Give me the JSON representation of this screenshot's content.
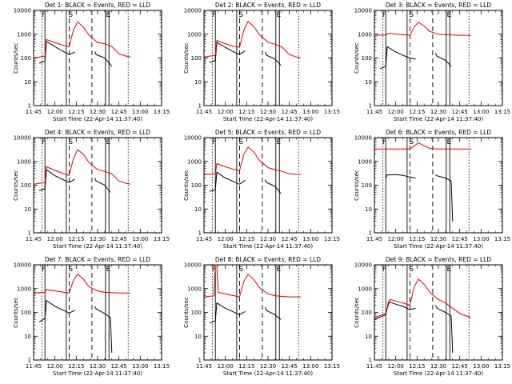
{
  "colors": {
    "events": "#000000",
    "lld": "#e00000",
    "background": "#ffffff"
  },
  "xticks": [
    "11:45",
    "12:00",
    "12:15",
    "12:30",
    "12:45",
    "13:00",
    "13:15"
  ],
  "yticks": [
    "1",
    "10",
    "100",
    "1000",
    "10000"
  ],
  "ylabel": "Counts/sec",
  "xlabel": "Start Time (22-Apr-14 11:37:40)",
  "markers": {
    "f": "F",
    "s": "S",
    "e": "E"
  },
  "chart_data": [
    {
      "type": "line",
      "title": "Det 1: BLACK = Events, RED = LLD",
      "x_range_minutes": [
        45,
        135
      ],
      "ylim": [
        1,
        10000
      ],
      "yscale": "log",
      "series": [
        {
          "name": "Events",
          "x": [
            49,
            53,
            54,
            60,
            65,
            70,
            74,
            75,
            80,
            84,
            86,
            88,
            89,
            95,
            100
          ],
          "values": [
            60,
            75,
            500,
            300,
            200,
            140,
            180,
            null,
            null,
            null,
            null,
            190,
            140,
            100,
            45
          ]
        },
        {
          "name": "LLD",
          "x": [
            45,
            53,
            54,
            60,
            65,
            70,
            73,
            76,
            80,
            84,
            90,
            95,
            100,
            105,
            110,
            113
          ],
          "values": [
            100,
            120,
            600,
            450,
            350,
            300,
            1500,
            3300,
            2000,
            900,
            450,
            400,
            300,
            150,
            120,
            110
          ]
        }
      ],
      "vlines_solid": [
        53,
        68,
        95.5,
        98
      ],
      "vlines_dashed": [
        70,
        86
      ],
      "vlines_dotted": [
        51,
        111.5
      ],
      "marker_x": {
        "f": 52,
        "s": 71,
        "e": 97.5
      }
    },
    {
      "type": "line",
      "title": "Det 2: BLACK = Events, RED = LLD",
      "x_range_minutes": [
        45,
        135
      ],
      "ylim": [
        1,
        10000
      ],
      "yscale": "log",
      "series": [
        {
          "name": "Events",
          "x": [
            49,
            53,
            54,
            60,
            65,
            70,
            74,
            75,
            84,
            86,
            88,
            89,
            95,
            99
          ],
          "values": [
            65,
            80,
            450,
            280,
            190,
            140,
            200,
            null,
            null,
            null,
            180,
            130,
            90,
            50
          ]
        },
        {
          "name": "LLD",
          "x": [
            45,
            53,
            54,
            60,
            65,
            70,
            73,
            76,
            80,
            84,
            90,
            95,
            100,
            105,
            110,
            113
          ],
          "values": [
            110,
            130,
            550,
            400,
            320,
            280,
            1500,
            3500,
            2100,
            950,
            460,
            380,
            280,
            140,
            110,
            100
          ]
        }
      ],
      "vlines_solid": [
        53,
        68,
        95.5,
        98
      ],
      "vlines_dashed": [
        70,
        86
      ],
      "vlines_dotted": [
        51,
        111.5
      ],
      "marker_x": {
        "f": 52,
        "s": 71,
        "e": 97.5
      }
    },
    {
      "type": "line",
      "title": "Det 3: BLACK = Events, RED = LLD",
      "x_range_minutes": [
        45,
        135
      ],
      "ylim": [
        1,
        10000
      ],
      "yscale": "log",
      "series": [
        {
          "name": "Events",
          "x": [
            49,
            53,
            54,
            60,
            65,
            70,
            74,
            75,
            84,
            86,
            88,
            89,
            95,
            99
          ],
          "values": [
            35,
            45,
            300,
            180,
            130,
            100,
            90,
            null,
            null,
            null,
            160,
            120,
            80,
            45
          ]
        },
        {
          "name": "LLD",
          "x": [
            45,
            53,
            55,
            60,
            65,
            70,
            73,
            76,
            80,
            84,
            90,
            95,
            100,
            105,
            113
          ],
          "values": [
            900,
            920,
            1100,
            1000,
            950,
            900,
            2000,
            3200,
            2200,
            1300,
            1000,
            950,
            920,
            900,
            900
          ]
        }
      ],
      "vlines_solid": [
        53,
        68,
        95.5,
        98
      ],
      "vlines_dashed": [
        70,
        86
      ],
      "vlines_dotted": [
        51,
        111.5
      ],
      "marker_x": {
        "f": 52,
        "s": 71,
        "e": 97.5
      }
    },
    {
      "type": "line",
      "title": "Det 4: BLACK = Events, RED = LLD",
      "x_range_minutes": [
        45,
        135
      ],
      "ylim": [
        1,
        10000
      ],
      "yscale": "log",
      "series": [
        {
          "name": "Events",
          "x": [
            49,
            53,
            54,
            60,
            65,
            70,
            74,
            75,
            84,
            86,
            88,
            89,
            95,
            99
          ],
          "values": [
            60,
            70,
            450,
            250,
            180,
            130,
            180,
            null,
            null,
            null,
            200,
            150,
            100,
            50
          ]
        },
        {
          "name": "LLD",
          "x": [
            45,
            53,
            54,
            60,
            65,
            70,
            73,
            76,
            80,
            84,
            90,
            95,
            100,
            105,
            110,
            113
          ],
          "values": [
            110,
            130,
            600,
            420,
            320,
            260,
            1300,
            3100,
            2000,
            900,
            450,
            380,
            300,
            150,
            120,
            110
          ]
        }
      ],
      "vlines_solid": [
        53,
        68,
        95.5,
        98
      ],
      "vlines_dashed": [
        70,
        86
      ],
      "vlines_dotted": [
        51,
        111.5
      ],
      "marker_x": {
        "f": 52,
        "s": 71,
        "e": 97.5
      }
    },
    {
      "type": "line",
      "title": "Det 5: BLACK = Events, RED = LLD",
      "x_range_minutes": [
        45,
        135
      ],
      "ylim": [
        1,
        10000
      ],
      "yscale": "log",
      "series": [
        {
          "name": "Events",
          "x": [
            49,
            53,
            54,
            60,
            65,
            70,
            74,
            75,
            84,
            86,
            88,
            89,
            95,
            99
          ],
          "values": [
            55,
            65,
            350,
            200,
            150,
            110,
            160,
            null,
            null,
            null,
            170,
            130,
            90,
            45
          ]
        },
        {
          "name": "LLD",
          "x": [
            45,
            53,
            54,
            60,
            65,
            70,
            73,
            76,
            80,
            84,
            90,
            95,
            100,
            105,
            113
          ],
          "values": [
            280,
            300,
            800,
            600,
            480,
            400,
            2000,
            4000,
            2500,
            1100,
            550,
            450,
            380,
            300,
            280
          ]
        }
      ],
      "vlines_solid": [
        53,
        68,
        95.5,
        98
      ],
      "vlines_dashed": [
        70,
        86
      ],
      "vlines_dotted": [
        51,
        111.5
      ],
      "marker_x": {
        "f": 52,
        "s": 71,
        "e": 97.5
      }
    },
    {
      "type": "line",
      "title": "Det 6: BLACK = Events, RED = LLD",
      "x_range_minutes": [
        45,
        135
      ],
      "ylim": [
        1,
        10000
      ],
      "yscale": "log",
      "series": [
        {
          "name": "Events",
          "x": [
            53,
            54,
            60,
            65,
            70,
            74,
            75,
            84,
            86,
            88,
            89,
            95,
            99,
            100
          ],
          "values": [
            200,
            270,
            280,
            260,
            220,
            200,
            null,
            null,
            null,
            270,
            250,
            200,
            150,
            3
          ]
        },
        {
          "name": "LLD",
          "x": [
            45,
            70,
            73,
            76,
            80,
            84,
            90,
            100,
            113
          ],
          "values": [
            3300,
            3300,
            4500,
            6000,
            4500,
            3500,
            3300,
            3300,
            3300
          ]
        }
      ],
      "vlines_solid": [
        53,
        68,
        95.5,
        98
      ],
      "vlines_dashed": [
        70,
        86
      ],
      "vlines_dotted": [
        51,
        111.5
      ],
      "marker_x": {
        "f": 52,
        "s": 71,
        "e": 97.5
      }
    },
    {
      "type": "line",
      "title": "Det 7: BLACK = Events, RED = LLD",
      "x_range_minutes": [
        45,
        135
      ],
      "ylim": [
        1,
        10000
      ],
      "yscale": "log",
      "series": [
        {
          "name": "Events",
          "x": [
            49,
            53,
            54,
            60,
            65,
            70,
            74,
            75,
            84,
            86,
            88,
            89,
            95,
            99,
            100
          ],
          "values": [
            40,
            55,
            320,
            180,
            130,
            95,
            120,
            null,
            null,
            null,
            180,
            140,
            90,
            60,
            2
          ]
        },
        {
          "name": "LLD",
          "x": [
            45,
            53,
            54,
            60,
            65,
            70,
            73,
            76,
            80,
            84,
            90,
            95,
            100,
            105,
            113
          ],
          "values": [
            650,
            700,
            900,
            800,
            720,
            650,
            2200,
            4000,
            2500,
            1200,
            800,
            700,
            680,
            650,
            650
          ]
        }
      ],
      "vlines_solid": [
        53,
        68,
        95.5,
        98
      ],
      "vlines_dashed": [
        70,
        86
      ],
      "vlines_dotted": [
        51,
        111.5
      ],
      "marker_x": {
        "f": 52,
        "s": 71,
        "e": 97.5
      }
    },
    {
      "type": "line",
      "title": "Det 8: BLACK = Events, RED = LLD",
      "x_range_minutes": [
        45,
        135
      ],
      "ylim": [
        1,
        10000
      ],
      "yscale": "log",
      "series": [
        {
          "name": "Events",
          "x": [
            49,
            53,
            54,
            60,
            65,
            70,
            74,
            75,
            84,
            86,
            88,
            89,
            95,
            99
          ],
          "values": [
            35,
            45,
            250,
            150,
            110,
            80,
            110,
            null,
            null,
            null,
            160,
            120,
            80,
            50
          ]
        },
        {
          "name": "LLD",
          "x": [
            45,
            52,
            53,
            54,
            55,
            60,
            65,
            70,
            73,
            76,
            80,
            84,
            90,
            95,
            100,
            105,
            113
          ],
          "values": [
            450,
            500,
            10000,
            10000,
            700,
            600,
            520,
            450,
            2000,
            4000,
            2400,
            1100,
            600,
            500,
            470,
            450,
            450
          ]
        }
      ],
      "vlines_solid": [
        53,
        68,
        95.5,
        98
      ],
      "vlines_dashed": [
        70,
        86
      ],
      "vlines_dotted": [
        51,
        111.5
      ],
      "marker_x": {
        "f": 52,
        "s": 71,
        "e": 97.5
      }
    },
    {
      "type": "line",
      "title": "Det 9: BLACK = Events, RED = LLD",
      "x_range_minutes": [
        45,
        135
      ],
      "ylim": [
        1,
        10000
      ],
      "yscale": "log",
      "series": [
        {
          "name": "Events",
          "x": [
            45,
            53,
            55,
            60,
            65,
            70,
            74,
            75,
            84,
            86,
            88,
            89,
            95,
            99,
            100
          ],
          "values": [
            50,
            80,
            280,
            220,
            180,
            130,
            150,
            null,
            null,
            null,
            200,
            150,
            100,
            70,
            2
          ]
        },
        {
          "name": "LLD",
          "x": [
            45,
            53,
            56,
            60,
            65,
            70,
            73,
            76,
            80,
            84,
            90,
            95,
            100,
            105,
            110,
            113
          ],
          "values": [
            60,
            90,
            350,
            300,
            250,
            200,
            1200,
            2500,
            1500,
            700,
            350,
            250,
            150,
            90,
            70,
            60
          ]
        }
      ],
      "vlines_solid": [
        53,
        68,
        95.5,
        98
      ],
      "vlines_dashed": [
        70,
        86
      ],
      "vlines_dotted": [
        51,
        111.5
      ],
      "marker_x": {
        "f": 52,
        "s": 71,
        "e": 97.5
      }
    }
  ]
}
